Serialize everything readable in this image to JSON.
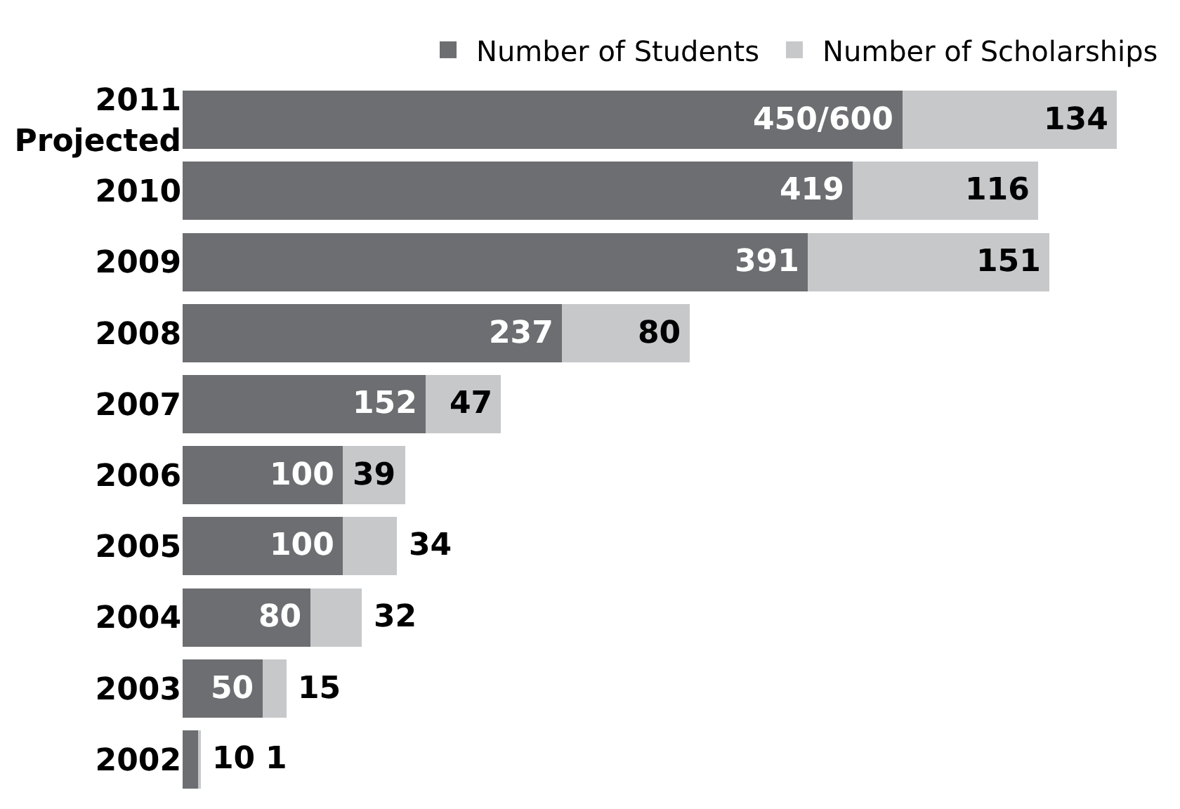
{
  "chart_data": {
    "type": "bar",
    "orientation": "horizontal",
    "stacked": true,
    "legend": "top right",
    "tick_labels": "y",
    "categories": [
      "2011\nProjected",
      "2010",
      "2009",
      "2008",
      "2007",
      "2006",
      "2005",
      "2004",
      "2003",
      "2002"
    ],
    "series": [
      {
        "name": "Number of Students",
        "color": "#6d6e71",
        "values": [
          450,
          419,
          391,
          237,
          152,
          100,
          100,
          80,
          50,
          10
        ],
        "value_labels": [
          "450/600",
          "419",
          "391",
          "237",
          "152",
          "100",
          "100",
          "80",
          "50",
          "10"
        ]
      },
      {
        "name": "Number of Scholarships",
        "color": "#c7c8ca",
        "values": [
          134,
          116,
          151,
          80,
          47,
          39,
          34,
          32,
          15,
          1
        ],
        "value_labels": [
          "134",
          "116",
          "151",
          "80",
          "47",
          "39",
          "34",
          "32",
          "15",
          "1"
        ]
      }
    ]
  }
}
